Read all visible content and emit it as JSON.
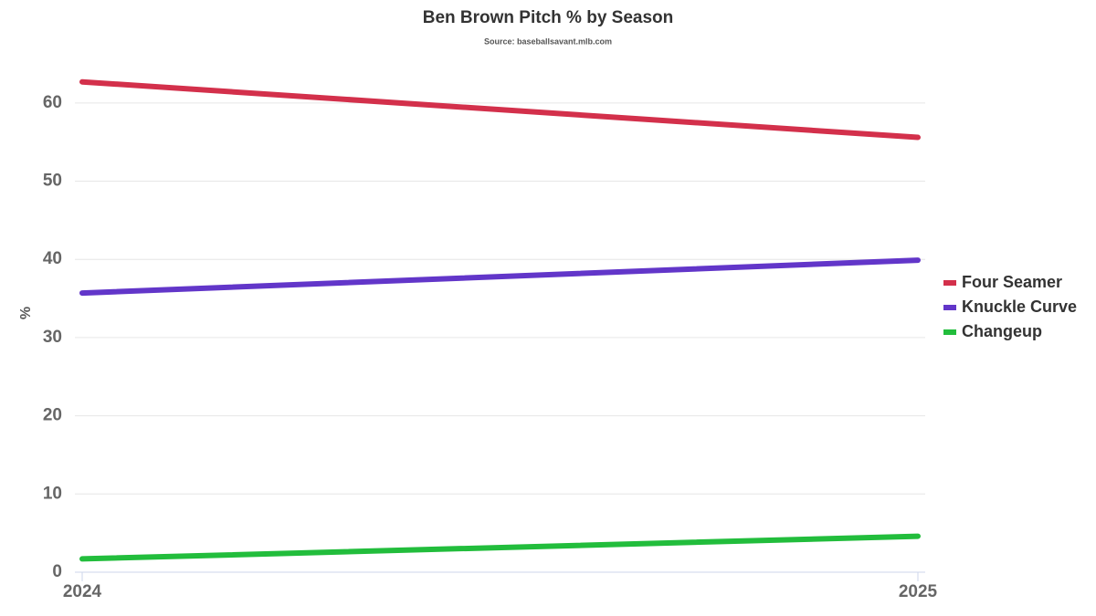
{
  "chart_data": {
    "type": "line",
    "title": "Ben Brown Pitch % by Season",
    "subtitle": "Source: baseballsavant.mlb.com",
    "y_label": "%",
    "x": [
      2024,
      2025
    ],
    "xlim": [
      2024,
      2025
    ],
    "xticks": [
      2024,
      2025
    ],
    "ylim": [
      0,
      65
    ],
    "yticks": [
      0,
      10,
      20,
      30,
      40,
      50,
      60
    ],
    "grid": true,
    "legend": "right",
    "series": [
      {
        "name": "Four Seamer",
        "color": "#d3304b",
        "values": [
          62.7,
          55.6
        ]
      },
      {
        "name": "Knuckle Curve",
        "color": "#6236c9",
        "values": [
          35.7,
          39.9
        ]
      },
      {
        "name": "Changeup",
        "color": "#22bd3c",
        "values": [
          1.7,
          4.6
        ]
      }
    ]
  }
}
